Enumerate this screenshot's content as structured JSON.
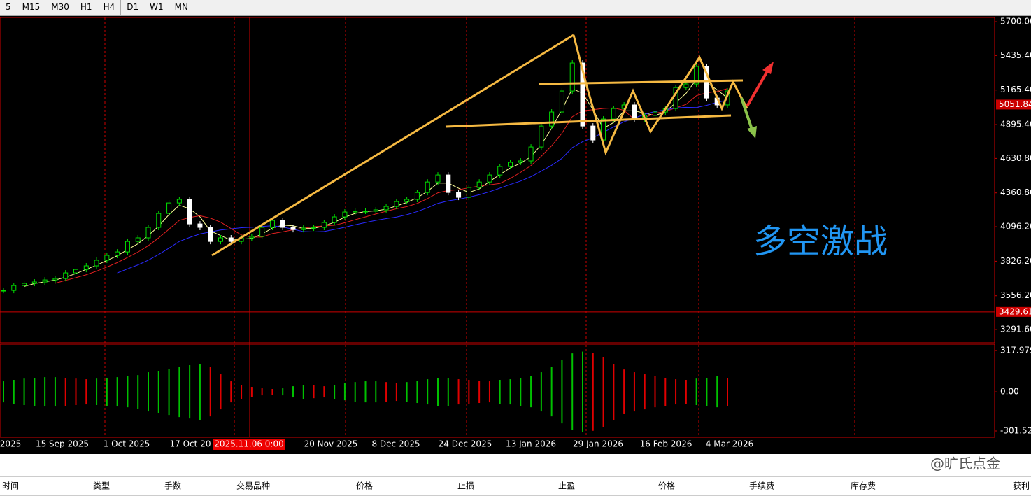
{
  "toolbar": {
    "timeframes": [
      "5",
      "M15",
      "M30",
      "H1",
      "H4",
      "D1",
      "W1",
      "MN"
    ]
  },
  "chart_data": {
    "type": "candlestick",
    "closes": [
      3598,
      3636,
      3653,
      3664,
      3680,
      3691,
      3735,
      3762,
      3790,
      3834,
      3872,
      3899,
      3981,
      4009,
      4091,
      4200,
      4282,
      4310,
      4118,
      4091,
      3981,
      4009,
      3981,
      4009,
      4020,
      4091,
      4145,
      4091,
      4074,
      4085,
      4091,
      4129,
      4173,
      4211,
      4217,
      4217,
      4228,
      4255,
      4293,
      4310,
      4364,
      4446,
      4501,
      4364,
      4326,
      4403,
      4446,
      4501,
      4567,
      4600,
      4611,
      4720,
      4884,
      4994,
      5158,
      5377,
      4884,
      4775,
      4939,
      5021,
      5049,
      4939,
      4967,
      4994,
      5021,
      5185,
      5213,
      5350,
      5103,
      5049,
      5158
    ],
    "ylim": [
      3188,
      5733
    ],
    "yticks": [
      {
        "value": 5700,
        "label": "5700.00"
      },
      {
        "value": 5435.4,
        "label": "5435.40"
      },
      {
        "value": 5165.4,
        "label": "5165.40"
      },
      {
        "value": 4895.4,
        "label": "4895.40"
      },
      {
        "value": 4630.8,
        "label": "4630.80"
      },
      {
        "value": 4360.8,
        "label": "4360.80"
      },
      {
        "value": 4096.2,
        "label": "4096.20"
      },
      {
        "value": 3826.2,
        "label": "3826.20"
      },
      {
        "value": 3556.2,
        "label": "3556.20"
      },
      {
        "value": 3291.6,
        "label": "3291.60"
      }
    ],
    "current_price": 5051.84,
    "line_price": 3429.61,
    "x_labels": [
      "2025",
      "15 Sep 2025",
      "1 Oct 2025",
      "17 Oct 20",
      "20 Nov 2025",
      "8 Dec 2025",
      "24 Dec 2025",
      "13 Jan 2026",
      "29 Jan 2026",
      "16 Feb 2026",
      "4 Mar 2026"
    ],
    "crosshair_label": "2025.11.06 0:00",
    "annotation": "多空激战",
    "indicator": {
      "values": [
        81,
        92,
        102,
        108,
        113,
        113,
        108,
        102,
        97,
        102,
        108,
        113,
        119,
        129,
        151,
        162,
        178,
        194,
        205,
        216,
        189,
        135,
        81,
        54,
        38,
        27,
        22,
        27,
        43,
        54,
        49,
        43,
        54,
        65,
        75,
        81,
        81,
        75,
        70,
        75,
        86,
        97,
        108,
        108,
        97,
        92,
        86,
        81,
        92,
        97,
        108,
        119,
        151,
        189,
        243,
        296,
        310,
        300,
        270,
        216,
        172,
        151,
        135,
        119,
        108,
        97,
        92,
        102,
        108,
        119,
        108
      ],
      "ylim": [
        -350,
        367
      ],
      "yticks": [
        317.979,
        {
          "value": 0,
          "label": "0.00"
        },
        -301.522
      ]
    }
  },
  "orders_header": [
    "时间",
    "类型",
    "手数",
    "交易品种",
    "价格",
    "止损",
    "止盈",
    "价格",
    "手续费",
    "库存费",
    "获利"
  ],
  "watermark": "@旷氏点金"
}
